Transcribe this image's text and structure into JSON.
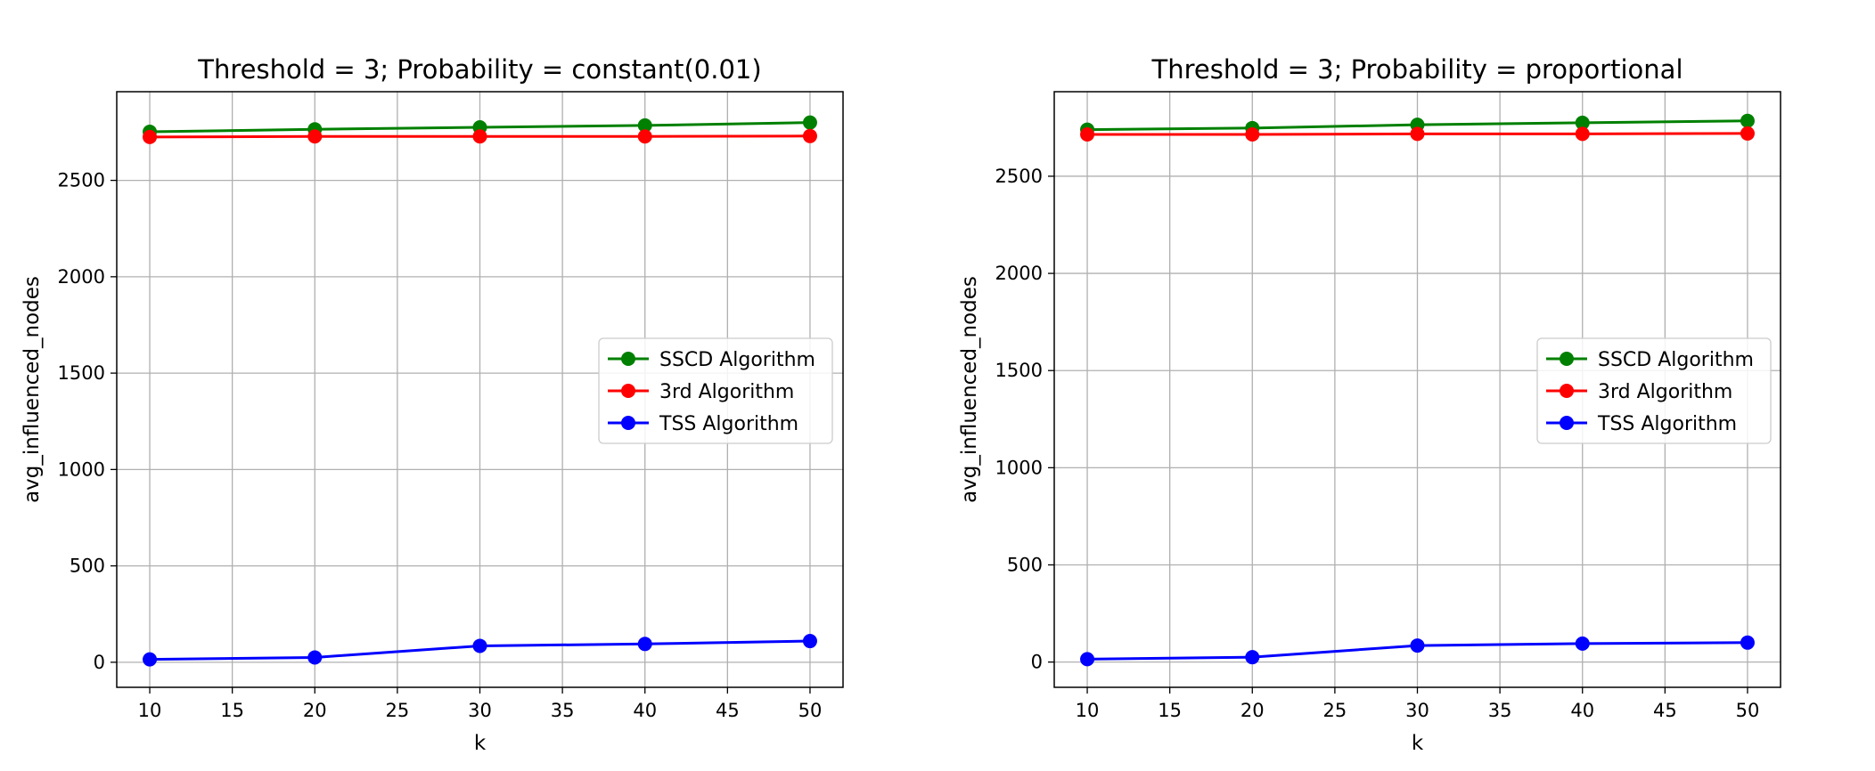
{
  "chart_data": [
    {
      "type": "line",
      "title": "Threshold = 3; Probability = constant(0.01)",
      "xlabel": "k",
      "ylabel": "avg_influenced_nodes",
      "x": [
        10,
        20,
        30,
        40,
        50
      ],
      "xlim": [
        8,
        52
      ],
      "ylim": [
        -130,
        2960
      ],
      "xticks": [
        10,
        15,
        20,
        25,
        30,
        35,
        40,
        45,
        50
      ],
      "yticks": [
        0,
        500,
        1000,
        1500,
        2000,
        2500
      ],
      "grid": true,
      "legend_position": "center-right",
      "series": [
        {
          "name": "SSCD Algorithm",
          "color": "#008000",
          "values": [
            2752,
            2765,
            2775,
            2785,
            2800
          ]
        },
        {
          "name": "3rd Algorithm",
          "color": "#ff0000",
          "values": [
            2725,
            2728,
            2728,
            2728,
            2730
          ]
        },
        {
          "name": "TSS Algorithm",
          "color": "#0000ff",
          "values": [
            15,
            25,
            85,
            95,
            110
          ]
        }
      ]
    },
    {
      "type": "line",
      "title": "Threshold = 3; Probability = proportional",
      "xlabel": "k",
      "ylabel": "avg_influenced_nodes",
      "x": [
        10,
        20,
        30,
        40,
        50
      ],
      "xlim": [
        8,
        52
      ],
      "ylim": [
        -130,
        2935
      ],
      "xticks": [
        10,
        15,
        20,
        25,
        30,
        35,
        40,
        45,
        50
      ],
      "yticks": [
        0,
        500,
        1000,
        1500,
        2000,
        2500
      ],
      "grid": true,
      "legend_position": "center-right",
      "series": [
        {
          "name": "SSCD Algorithm",
          "color": "#008000",
          "values": [
            2740,
            2748,
            2765,
            2775,
            2785
          ]
        },
        {
          "name": "3rd Algorithm",
          "color": "#ff0000",
          "values": [
            2715,
            2715,
            2718,
            2718,
            2720
          ]
        },
        {
          "name": "TSS Algorithm",
          "color": "#0000ff",
          "values": [
            15,
            25,
            85,
            95,
            100
          ]
        }
      ]
    }
  ]
}
